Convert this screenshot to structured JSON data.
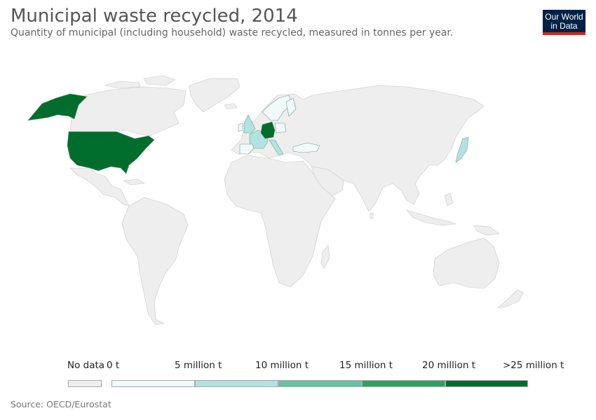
{
  "header": {
    "title": "Municipal waste recycled, 2014",
    "subtitle": "Quantity of municipal (including household) waste recycled, measured in tonnes per year.",
    "logo_line1": "Our World",
    "logo_line2": "in Data"
  },
  "legend": {
    "no_data_label": "No data",
    "no_data_color": "#eeeeee",
    "ticks": [
      "0 t",
      "5 million t",
      "10 million t",
      "15 million t",
      "20 million t",
      ">25 million t"
    ],
    "bins": [
      {
        "color": "#f1f9fb"
      },
      {
        "color": "#b2e2e2"
      },
      {
        "color": "#66c2a4"
      },
      {
        "color": "#2ca25f"
      },
      {
        "color": "#006d2c"
      }
    ]
  },
  "map": {
    "no_data_color": "#eeeeee",
    "land_stroke": "#c8c8c8",
    "highlighted_countries": [
      {
        "name": "United States",
        "color": "#006d2c"
      },
      {
        "name": "Germany",
        "color": "#006d2c"
      },
      {
        "name": "Japan",
        "color": "#b2e2e2"
      },
      {
        "name": "United Kingdom",
        "color": "#b2e2e2"
      },
      {
        "name": "France",
        "color": "#b2e2e2"
      },
      {
        "name": "Italy",
        "color": "#b2e2e2"
      },
      {
        "name": "Spain",
        "color": "#f1f9fb"
      },
      {
        "name": "Turkey",
        "color": "#f1f9fb"
      },
      {
        "name": "Poland",
        "color": "#f1f9fb"
      },
      {
        "name": "Sweden",
        "color": "#f1f9fb"
      },
      {
        "name": "Norway",
        "color": "#f1f9fb"
      },
      {
        "name": "Finland",
        "color": "#f1f9fb"
      }
    ]
  },
  "footer": {
    "source": "Source: OECD/Eurostat"
  }
}
